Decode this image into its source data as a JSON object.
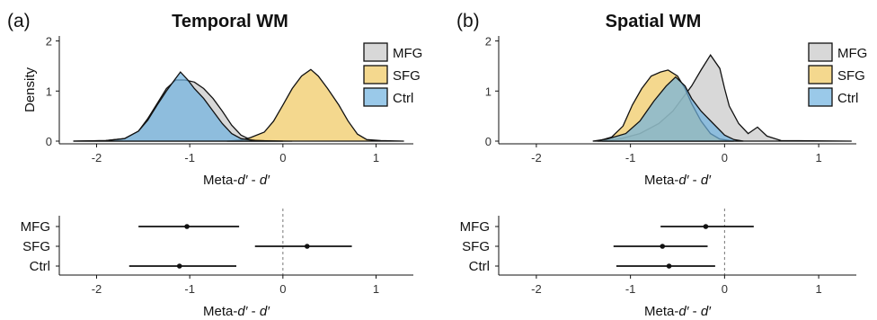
{
  "chart_data": [
    {
      "type": "area",
      "panel_letter": "(a)",
      "title": "Temporal WM",
      "xlabel": "Meta-d′ - d′",
      "ylabel": "Density",
      "xlim": [
        -2.4,
        1.4
      ],
      "ylim": [
        0,
        2.1
      ],
      "xticks": [
        -2,
        -1,
        0,
        1
      ],
      "yticks": [
        0,
        1,
        2
      ],
      "legend": {
        "position": "top-right",
        "entries": [
          "MFG",
          "SFG",
          "Ctrl"
        ]
      },
      "series": [
        {
          "name": "MFG",
          "color": "#c8c8c8",
          "points": [
            [
              -2.25,
              0
            ],
            [
              -1.9,
              0.01
            ],
            [
              -1.7,
              0.05
            ],
            [
              -1.55,
              0.2
            ],
            [
              -1.45,
              0.45
            ],
            [
              -1.35,
              0.75
            ],
            [
              -1.25,
              1.05
            ],
            [
              -1.15,
              1.22
            ],
            [
              -1.05,
              1.22
            ],
            [
              -0.95,
              1.18
            ],
            [
              -0.85,
              1.05
            ],
            [
              -0.75,
              0.85
            ],
            [
              -0.65,
              0.6
            ],
            [
              -0.55,
              0.32
            ],
            [
              -0.45,
              0.12
            ],
            [
              -0.35,
              0.03
            ],
            [
              -0.2,
              0.01
            ],
            [
              0.1,
              0
            ]
          ]
        },
        {
          "name": "SFG",
          "color": "#f0c75e",
          "points": [
            [
              -0.6,
              0
            ],
            [
              -0.45,
              0.02
            ],
            [
              -0.35,
              0.07
            ],
            [
              -0.2,
              0.18
            ],
            [
              -0.1,
              0.4
            ],
            [
              0.0,
              0.72
            ],
            [
              0.1,
              1.05
            ],
            [
              0.2,
              1.3
            ],
            [
              0.3,
              1.43
            ],
            [
              0.38,
              1.3
            ],
            [
              0.48,
              1.05
            ],
            [
              0.6,
              0.72
            ],
            [
              0.7,
              0.4
            ],
            [
              0.8,
              0.14
            ],
            [
              0.9,
              0.03
            ],
            [
              1.05,
              0.01
            ],
            [
              1.3,
              0
            ]
          ]
        },
        {
          "name": "Ctrl",
          "color": "#6fb2e0",
          "points": [
            [
              -2.25,
              0
            ],
            [
              -1.9,
              0.01
            ],
            [
              -1.7,
              0.05
            ],
            [
              -1.55,
              0.2
            ],
            [
              -1.45,
              0.42
            ],
            [
              -1.35,
              0.72
            ],
            [
              -1.25,
              1.0
            ],
            [
              -1.18,
              1.18
            ],
            [
              -1.1,
              1.38
            ],
            [
              -1.02,
              1.22
            ],
            [
              -0.95,
              1.05
            ],
            [
              -0.85,
              0.85
            ],
            [
              -0.75,
              0.6
            ],
            [
              -0.65,
              0.35
            ],
            [
              -0.55,
              0.15
            ],
            [
              -0.45,
              0.05
            ],
            [
              -0.3,
              0.01
            ],
            [
              0.0,
              0
            ]
          ]
        }
      ]
    },
    {
      "type": "area",
      "panel_letter": "(b)",
      "title": "Spatial WM",
      "xlabel": "Meta-d′ - d′",
      "ylabel": "",
      "xlim": [
        -2.4,
        1.4
      ],
      "ylim": [
        0,
        2.1
      ],
      "xticks": [
        -2,
        -1,
        0,
        1
      ],
      "yticks": [
        0,
        1,
        2
      ],
      "legend": {
        "position": "top-right",
        "entries": [
          "MFG",
          "SFG",
          "Ctrl"
        ]
      },
      "series": [
        {
          "name": "MFG",
          "color": "#c8c8c8",
          "points": [
            [
              -1.3,
              0
            ],
            [
              -1.1,
              0.05
            ],
            [
              -0.9,
              0.15
            ],
            [
              -0.7,
              0.35
            ],
            [
              -0.55,
              0.6
            ],
            [
              -0.45,
              0.85
            ],
            [
              -0.35,
              1.1
            ],
            [
              -0.25,
              1.42
            ],
            [
              -0.15,
              1.72
            ],
            [
              -0.05,
              1.45
            ],
            [
              0.0,
              1.05
            ],
            [
              0.05,
              0.7
            ],
            [
              0.15,
              0.35
            ],
            [
              0.25,
              0.15
            ],
            [
              0.35,
              0.28
            ],
            [
              0.45,
              0.1
            ],
            [
              0.6,
              0.01
            ],
            [
              1.35,
              0
            ]
          ]
        },
        {
          "name": "SFG",
          "color": "#f0c75e",
          "points": [
            [
              -1.35,
              0
            ],
            [
              -1.2,
              0.08
            ],
            [
              -1.08,
              0.3
            ],
            [
              -0.98,
              0.72
            ],
            [
              -0.88,
              1.05
            ],
            [
              -0.78,
              1.3
            ],
            [
              -0.68,
              1.38
            ],
            [
              -0.6,
              1.42
            ],
            [
              -0.5,
              1.3
            ],
            [
              -0.42,
              1.05
            ],
            [
              -0.35,
              0.75
            ],
            [
              -0.25,
              0.4
            ],
            [
              -0.15,
              0.15
            ],
            [
              -0.05,
              0.04
            ],
            [
              0.1,
              0
            ]
          ]
        },
        {
          "name": "Ctrl",
          "color": "#6fb2e0",
          "points": [
            [
              -1.4,
              0
            ],
            [
              -1.25,
              0.04
            ],
            [
              -1.05,
              0.15
            ],
            [
              -0.9,
              0.4
            ],
            [
              -0.75,
              0.8
            ],
            [
              -0.62,
              1.1
            ],
            [
              -0.52,
              1.28
            ],
            [
              -0.42,
              1.1
            ],
            [
              -0.35,
              0.85
            ],
            [
              -0.25,
              0.6
            ],
            [
              -0.12,
              0.35
            ],
            [
              0.0,
              0.12
            ],
            [
              0.1,
              0.03
            ],
            [
              0.2,
              0
            ]
          ]
        }
      ]
    },
    {
      "type": "scatter",
      "subtype": "forest",
      "xlabel": "Meta-d′ - d′",
      "xlim": [
        -2.4,
        1.4
      ],
      "xticks": [
        -2,
        -1,
        0,
        1
      ],
      "reference_line": 0,
      "categories": [
        "MFG",
        "SFG",
        "Ctrl"
      ],
      "estimates": [
        -1.03,
        0.26,
        -1.11
      ],
      "lower": [
        -1.55,
        -0.3,
        -1.65
      ],
      "upper": [
        -0.47,
        0.74,
        -0.5
      ]
    },
    {
      "type": "scatter",
      "subtype": "forest",
      "xlabel": "Meta-d′ - d′",
      "xlim": [
        -2.4,
        1.4
      ],
      "xticks": [
        -2,
        -1,
        0,
        1
      ],
      "reference_line": 0,
      "categories": [
        "MFG",
        "SFG",
        "Ctrl"
      ],
      "estimates": [
        -0.2,
        -0.66,
        -0.59
      ],
      "lower": [
        -0.68,
        -1.18,
        -1.15
      ],
      "upper": [
        0.31,
        -0.18,
        -0.1
      ]
    }
  ]
}
